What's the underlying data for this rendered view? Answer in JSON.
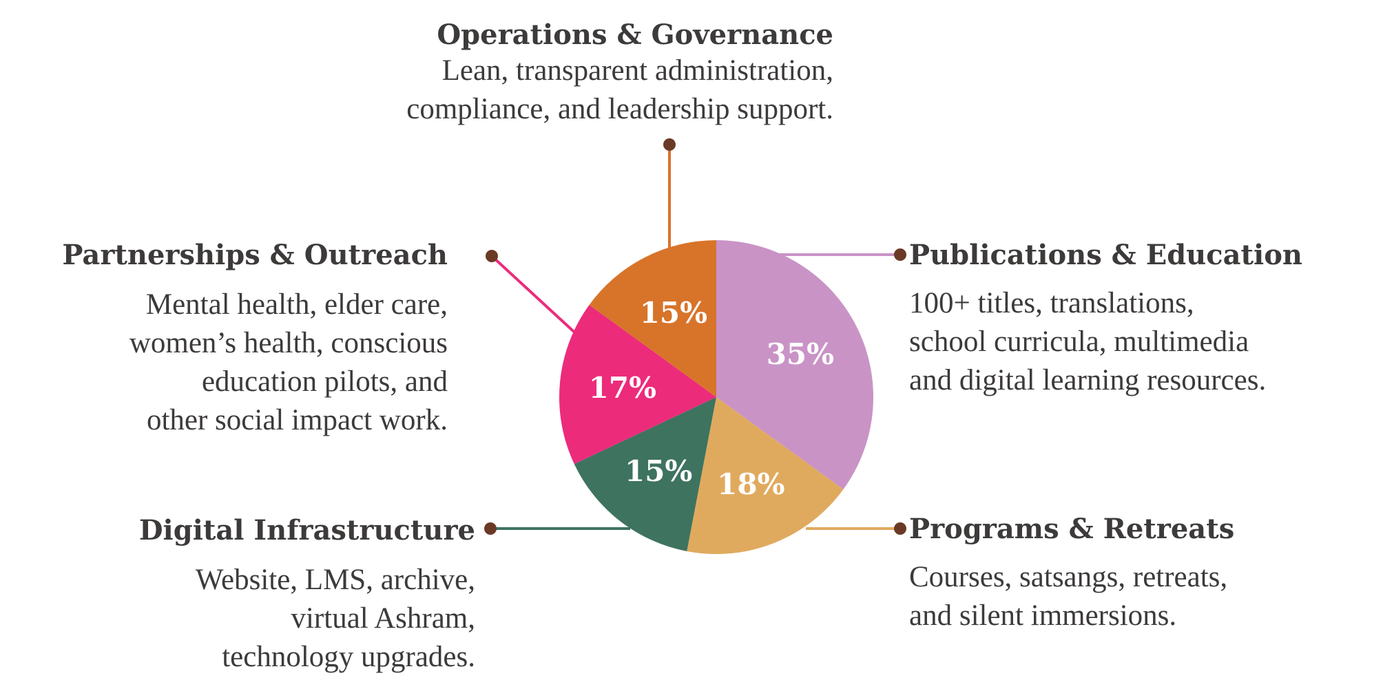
{
  "chart_data": {
    "type": "pie",
    "start_angle_deg": 0,
    "direction": "clockwise",
    "slices": [
      {
        "label": "Publications & Education",
        "value": 35,
        "value_label": "35%",
        "color": "#C993C6",
        "line_color": "#C993C6",
        "description": [
          "100+ titles, translations,",
          "school curricula, multimedia",
          "and digital learning resources."
        ]
      },
      {
        "label": "Programs & Retreats",
        "value": 18,
        "value_label": "18%",
        "color": "#E0AA5E",
        "line_color": "#E0AA5E",
        "description": [
          "Courses, satsangs, retreats,",
          "and silent immersions."
        ]
      },
      {
        "label": "Digital Infrastructure",
        "value": 15,
        "value_label": "15%",
        "color": "#3E7360",
        "line_color": "#3E7360",
        "description": [
          "Website, LMS, archive,",
          "virtual Ashram,",
          "technology upgrades."
        ]
      },
      {
        "label": "Partnerships & Outreach",
        "value": 17,
        "value_label": "17%",
        "color": "#EC2B7B",
        "line_color": "#EC2B7B",
        "description": [
          "Mental health, elder care,",
          "women’s health, conscious",
          "education pilots, and",
          "other social impact work."
        ]
      },
      {
        "label": "Operations & Governance",
        "value": 15,
        "value_label": "15%",
        "color": "#D8742A",
        "line_color": "#D8742A",
        "description": [
          "Lean, transparent administration,",
          "compliance, and leadership support."
        ]
      }
    ],
    "marker_color": "#6B3A26",
    "text_color": "#3D3A3A"
  }
}
